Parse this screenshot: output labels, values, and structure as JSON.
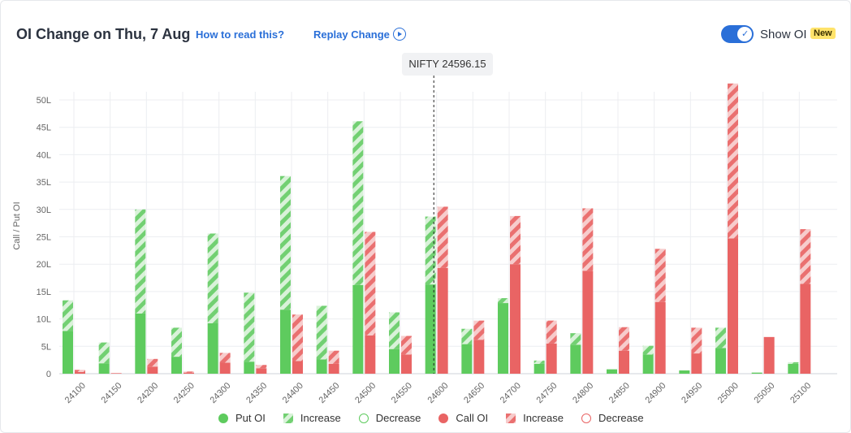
{
  "header": {
    "title": "OI Change on Thu, 7 Aug",
    "how_to_read": "How to read this?",
    "replay": "Replay Change",
    "toggle_label": "Show OI",
    "badge": "New",
    "spot_label": "NIFTY 24596.15"
  },
  "colors": {
    "put": "#5ecb5e",
    "put_light": "#bfe9bf",
    "call": "#e96464",
    "call_light": "#f5b4b4",
    "accent": "#2a6fd8"
  },
  "chart_data": {
    "type": "bar",
    "title": "OI Change on Thu, 7 Aug",
    "ylabel": "Call / Put OI",
    "ylim": [
      0,
      50
    ],
    "ytick_labels": [
      "0",
      "5L",
      "10L",
      "15L",
      "20L",
      "25L",
      "30L",
      "35L",
      "40L",
      "45L",
      "50L"
    ],
    "spot_price": 24596.15,
    "categories": [
      "24100",
      "24150",
      "24200",
      "24250",
      "24300",
      "24350",
      "24400",
      "24450",
      "24500",
      "24550",
      "24600",
      "24650",
      "24700",
      "24750",
      "24800",
      "24850",
      "24900",
      "24950",
      "25000",
      "25050",
      "25100"
    ],
    "series": [
      {
        "name": "Put OI",
        "values": [
          7.8,
          1.9,
          11.0,
          3.1,
          9.2,
          2.2,
          11.7,
          2.6,
          16.2,
          4.5,
          16.3,
          5.4,
          12.9,
          1.8,
          5.3,
          0.8,
          3.5,
          0.6,
          4.7,
          0.2,
          1.8
        ]
      },
      {
        "name": "Increase",
        "values": [
          5.6,
          3.8,
          19.0,
          5.3,
          16.4,
          12.6,
          24.4,
          9.8,
          29.9,
          6.7,
          12.4,
          2.8,
          0.9,
          0.6,
          2.1,
          0,
          1.6,
          0,
          3.7,
          0,
          0.3
        ]
      },
      {
        "name": "Call OI",
        "values": [
          0.3,
          0.1,
          1.3,
          0.2,
          2.0,
          1.0,
          2.3,
          1.8,
          7.0,
          3.5,
          19.3,
          6.2,
          20.0,
          5.5,
          18.8,
          4.2,
          13.1,
          3.7,
          24.7,
          6.7,
          16.4
        ]
      },
      {
        "name": "Increase",
        "values": [
          0.4,
          0,
          1.4,
          0.2,
          1.8,
          0.6,
          8.5,
          2.4,
          18.9,
          3.4,
          11.2,
          3.5,
          8.8,
          4.2,
          11.4,
          4.3,
          9.7,
          4.7,
          28.3,
          0,
          10.0
        ]
      }
    ],
    "legend": [
      {
        "label": "Put OI",
        "kind": "put-solid"
      },
      {
        "label": "Increase",
        "kind": "put-hatch"
      },
      {
        "label": "Decrease",
        "kind": "put-outline"
      },
      {
        "label": "Call OI",
        "kind": "call-solid"
      },
      {
        "label": "Increase",
        "kind": "call-hatch"
      },
      {
        "label": "Decrease",
        "kind": "call-outline"
      }
    ]
  }
}
